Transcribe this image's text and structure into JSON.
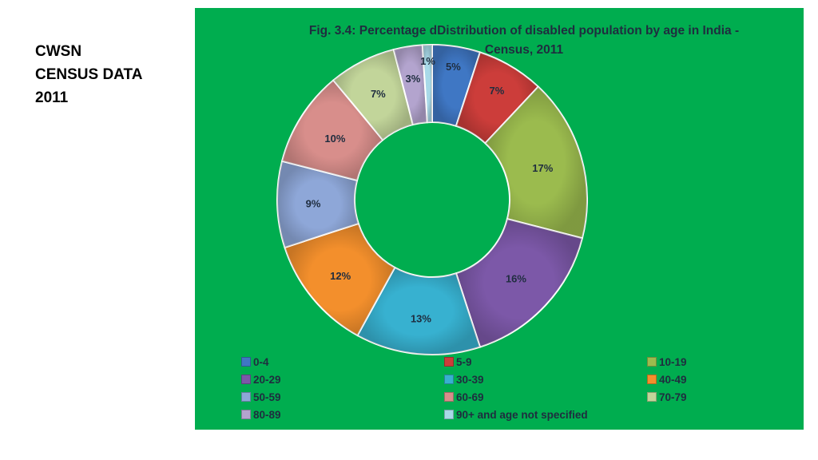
{
  "side_title": {
    "lines": [
      "CWSN",
      "CENSUS DATA",
      "2011"
    ]
  },
  "colors": {
    "panel_background": "#00ad4f"
  },
  "chart_data": {
    "type": "pie",
    "donut": true,
    "title_lines": [
      "Fig. 3.4: Percentage dDistribution of disabled population by age in India -",
      "Census, 2011"
    ],
    "categories": [
      "0-4",
      "5-9",
      "10-19",
      "20-29",
      "30-39",
      "40-49",
      "50-59",
      "60-69",
      "70-79",
      "80-89",
      "90+ and age not specified"
    ],
    "values": [
      5,
      7,
      17,
      16,
      13,
      12,
      9,
      10,
      7,
      3,
      1
    ],
    "data_labels": [
      "5%",
      "7%",
      "17%",
      "16%",
      "13%",
      "12%",
      "9%",
      "10%",
      "7%",
      "3%",
      "1%"
    ],
    "colors": [
      "#3f77c4",
      "#cc3d3a",
      "#9bbb4e",
      "#7c58a8",
      "#37b1d0",
      "#f38f2c",
      "#8ea7d8",
      "#d88e8b",
      "#c2d59a",
      "#b3a4ce",
      "#a8d9e8"
    ],
    "legend_position": "bottom"
  }
}
